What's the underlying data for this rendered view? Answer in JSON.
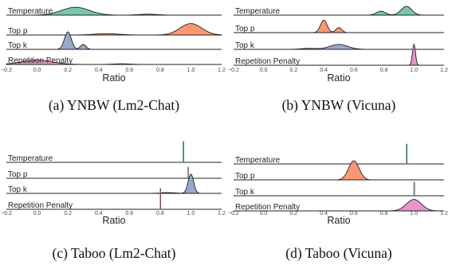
{
  "colors": {
    "Temperature": "#66c2a5",
    "Top p": "#fc8d62",
    "Top k": "#8da0cb",
    "Repetition Penalty": "#e78ac3",
    "line": "#222222"
  },
  "chart_data": [
    {
      "type": "ridgeline",
      "caption": "(a) YNBW (Lm2-Chat)",
      "xlabel": "Ratio",
      "xlim": [
        -0.2,
        1.2
      ],
      "xticks": [
        "−0.2",
        "0.0",
        "0.2",
        "0.4",
        "0.6",
        "0.8",
        "1.0",
        "1.2"
      ],
      "tick_values": [
        -0.2,
        0,
        0.2,
        0.4,
        0.6,
        0.8,
        1.0,
        1.2
      ],
      "rows": [
        {
          "name": "Temperature",
          "components": [
            {
              "mu": 0.25,
              "sigma": 0.09,
              "w": 1.0
            },
            {
              "mu": 0.72,
              "sigma": 0.06,
              "w": 0.12
            }
          ],
          "peak": 0.45
        },
        {
          "name": "Top p",
          "components": [
            {
              "mu": 1.0,
              "sigma": 0.07,
              "w": 1.0
            },
            {
              "mu": 0.45,
              "sigma": 0.08,
              "w": 0.12
            }
          ],
          "peak": 0.6
        },
        {
          "name": "Top k",
          "components": [
            {
              "mu": 0.2,
              "sigma": 0.022,
              "w": 1.0
            },
            {
              "mu": 0.3,
              "sigma": 0.018,
              "w": 0.28
            }
          ],
          "peak": 1.0
        },
        {
          "name": "Repetition Penalty",
          "components": [
            {
              "mu": 0.0,
              "sigma": 0.1,
              "w": 1.0
            },
            {
              "mu": 0.55,
              "sigma": 0.06,
              "w": 0.15
            }
          ],
          "peak": 0.22
        }
      ]
    },
    {
      "type": "ridgeline",
      "caption": "(b) YNBW (Vicuna)",
      "xlabel": "Ratio",
      "xlim": [
        -0.2,
        1.2
      ],
      "xticks": [
        "−0.2",
        "0.0",
        "0.2",
        "0.4",
        "0.6",
        "0.8",
        "1.0",
        "1.2"
      ],
      "tick_values": [
        -0.2,
        0,
        0.2,
        0.4,
        0.6,
        0.8,
        1.0,
        1.2
      ],
      "rows": [
        {
          "name": "Temperature",
          "components": [
            {
              "mu": 0.95,
              "sigma": 0.035,
              "w": 1.0
            },
            {
              "mu": 0.78,
              "sigma": 0.03,
              "w": 0.45
            }
          ],
          "peak": 0.5
        },
        {
          "name": "Top p",
          "components": [
            {
              "mu": 0.4,
              "sigma": 0.022,
              "w": 1.0
            },
            {
              "mu": 0.5,
              "sigma": 0.02,
              "w": 0.4
            }
          ],
          "peak": 0.65
        },
        {
          "name": "Top k",
          "components": [
            {
              "mu": 0.5,
              "sigma": 0.06,
              "w": 1.0
            },
            {
              "mu": 0.3,
              "sigma": 0.05,
              "w": 0.2
            }
          ],
          "peak": 0.28
        },
        {
          "name": "Repetition Penalty",
          "components": [
            {
              "mu": 1.0,
              "sigma": 0.01,
              "w": 1.0
            }
          ],
          "peak": 1.1
        }
      ]
    },
    {
      "type": "ridgeline",
      "caption": "(c) Taboo (Lm2-Chat)",
      "xlabel": "Ratio",
      "xlim": [
        -0.2,
        1.2
      ],
      "xticks": [
        "−0.2",
        "0.0",
        "0.2",
        "0.4",
        "0.6",
        "0.8",
        "1.0",
        "1.2"
      ],
      "tick_values": [
        -0.2,
        0,
        0.2,
        0.4,
        0.6,
        0.8,
        1.0,
        1.2
      ],
      "rows": [
        {
          "name": "Temperature",
          "spike": 0.95,
          "peak": 1.2
        },
        {
          "name": "Top p",
          "spike": 0.98,
          "peak": 0.6
        },
        {
          "name": "Top k",
          "components": [
            {
              "mu": 1.0,
              "sigma": 0.018,
              "w": 1.0
            },
            {
              "mu": 0.85,
              "sigma": 0.05,
              "w": 0.04
            }
          ],
          "peak": 1.1
        },
        {
          "name": "Repetition Penalty",
          "spike": 0.8,
          "peak": 1.1
        }
      ]
    },
    {
      "type": "ridgeline",
      "caption": "(d) Taboo (Vicuna)",
      "xlabel": "Ratio",
      "xlim": [
        -0.2,
        1.2
      ],
      "xticks": [
        "−0.2",
        "0.0",
        "0.2",
        "0.4",
        "0.6",
        "0.8",
        "1.0",
        "1.2"
      ],
      "tick_values": [
        -0.2,
        0,
        0.2,
        0.4,
        0.6,
        0.8,
        1.0,
        1.2
      ],
      "rows": [
        {
          "name": "Temperature",
          "spike": 0.95,
          "peak": 1.15
        },
        {
          "name": "Top p",
          "components": [
            {
              "mu": 0.6,
              "sigma": 0.035,
              "w": 1.0
            }
          ],
          "peak": 1.0
        },
        {
          "name": "Top k",
          "spike": 1.0,
          "peak": 0.8
        },
        {
          "name": "Repetition Penalty",
          "components": [
            {
              "mu": 1.0,
              "sigma": 0.05,
              "w": 1.0
            }
          ],
          "peak": 0.6
        }
      ]
    }
  ]
}
